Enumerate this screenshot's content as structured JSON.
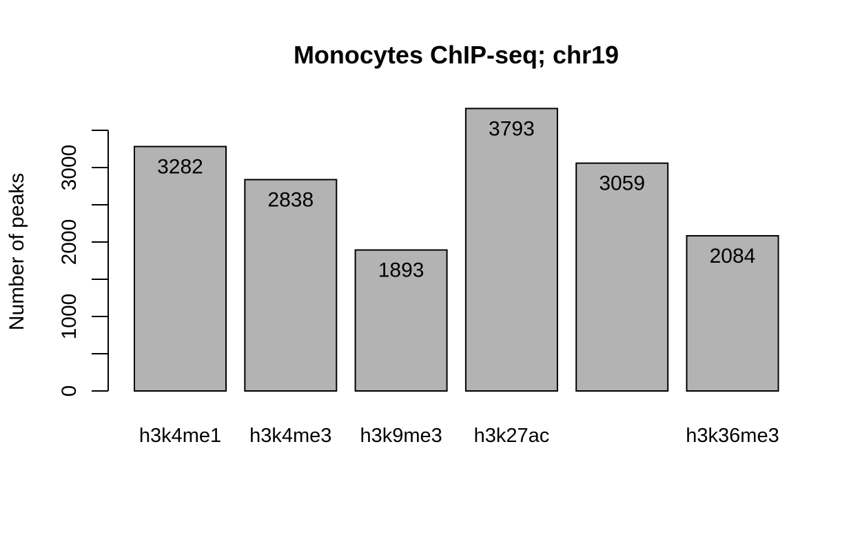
{
  "chart_data": {
    "type": "bar",
    "title": "Monocytes ChIP-seq; chr19",
    "xlabel": "",
    "ylabel": "Number of peaks",
    "categories": [
      "h3k4me1",
      "h3k4me3",
      "h3k9me3",
      "h3k27ac",
      "",
      "h3k36me3"
    ],
    "values": [
      3282,
      2838,
      1893,
      3793,
      3059,
      2084
    ],
    "data_labels": [
      "3282",
      "2838",
      "1893",
      "3793",
      "3059",
      "2084"
    ],
    "yticks": [
      0,
      1000,
      2000,
      3000
    ],
    "ytick_labels": [
      "0",
      "1000",
      "2000",
      "3000"
    ],
    "ylim": [
      0,
      3500
    ],
    "grid": false,
    "legend": "none",
    "colors": {
      "bar_fill": "#b3b3b3",
      "bar_stroke": "#000000",
      "text": "#000000",
      "background": "#ffffff"
    }
  }
}
